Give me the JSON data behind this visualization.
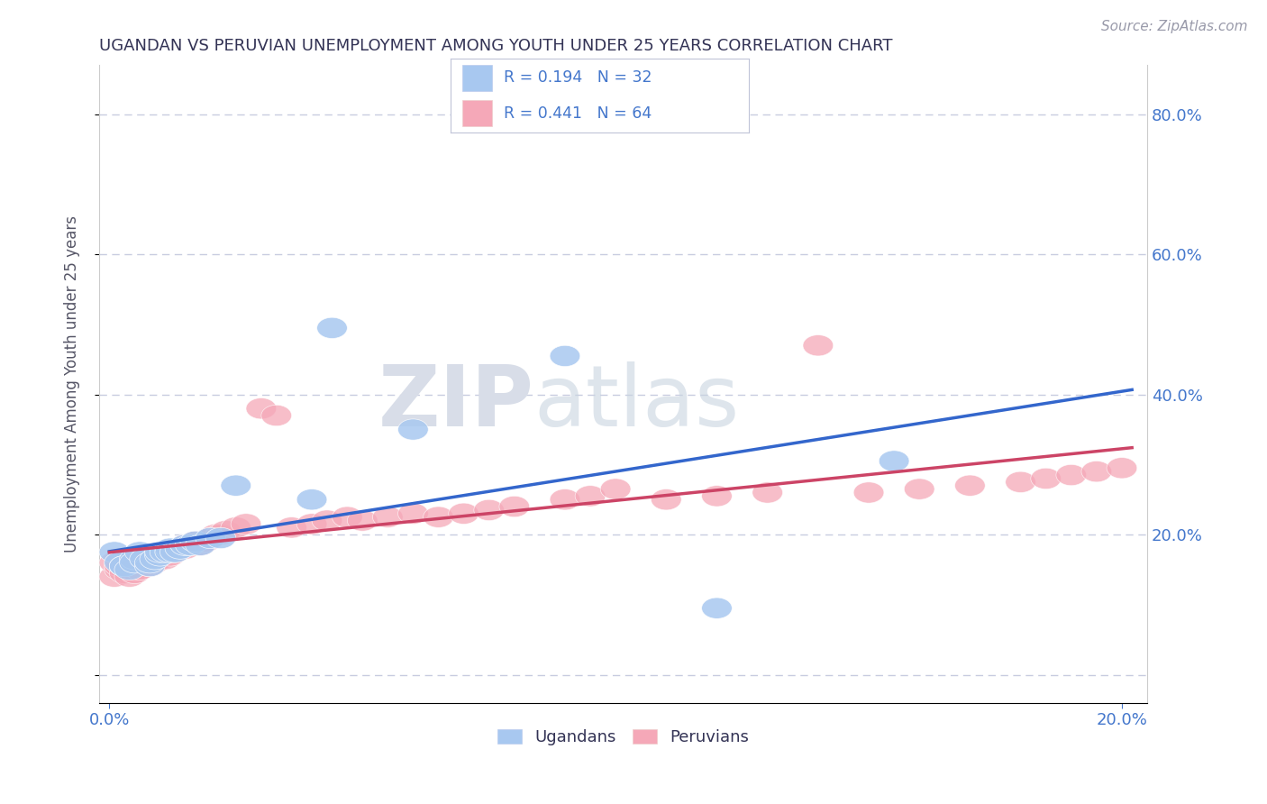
{
  "title": "UGANDAN VS PERUVIAN UNEMPLOYMENT AMONG YOUTH UNDER 25 YEARS CORRELATION CHART",
  "source": "Source: ZipAtlas.com",
  "ylabel": "Unemployment Among Youth under 25 years",
  "ugandan_R": 0.194,
  "ugandan_N": 32,
  "peruvian_R": 0.441,
  "peruvian_N": 64,
  "ugandan_color": "#a8c8f0",
  "peruvian_color": "#f5a8b8",
  "ugandan_line_color": "#3366cc",
  "peruvian_line_color": "#cc4466",
  "title_color": "#333355",
  "tick_color": "#4477cc",
  "grid_color": "#c8cce0",
  "background_color": "#ffffff",
  "legend_label_color": "#4477cc",
  "xlim": [
    -0.002,
    0.205
  ],
  "ylim": [
    -0.04,
    0.87
  ],
  "yticks": [
    0.0,
    0.2,
    0.4,
    0.6,
    0.8
  ],
  "xticks": [
    0.0,
    0.2
  ],
  "ugandan_x": [
    0.001,
    0.002,
    0.003,
    0.003,
    0.004,
    0.005,
    0.005,
    0.006,
    0.007,
    0.008,
    0.008,
    0.009,
    0.01,
    0.01,
    0.011,
    0.012,
    0.012,
    0.013,
    0.014,
    0.015,
    0.016,
    0.017,
    0.018,
    0.02,
    0.022,
    0.025,
    0.04,
    0.044,
    0.06,
    0.09,
    0.12,
    0.155
  ],
  "ugandan_y": [
    0.175,
    0.16,
    0.155,
    0.155,
    0.15,
    0.165,
    0.16,
    0.175,
    0.165,
    0.155,
    0.16,
    0.165,
    0.17,
    0.175,
    0.175,
    0.18,
    0.175,
    0.175,
    0.18,
    0.185,
    0.185,
    0.19,
    0.185,
    0.195,
    0.195,
    0.27,
    0.25,
    0.495,
    0.35,
    0.455,
    0.095,
    0.305
  ],
  "peruvian_x": [
    0.001,
    0.001,
    0.002,
    0.002,
    0.003,
    0.003,
    0.004,
    0.004,
    0.005,
    0.005,
    0.006,
    0.006,
    0.007,
    0.007,
    0.008,
    0.008,
    0.009,
    0.01,
    0.01,
    0.011,
    0.012,
    0.012,
    0.013,
    0.014,
    0.015,
    0.015,
    0.016,
    0.017,
    0.018,
    0.019,
    0.02,
    0.021,
    0.022,
    0.023,
    0.025,
    0.027,
    0.03,
    0.033,
    0.036,
    0.04,
    0.043,
    0.047,
    0.05,
    0.055,
    0.06,
    0.065,
    0.07,
    0.075,
    0.08,
    0.09,
    0.095,
    0.1,
    0.11,
    0.12,
    0.13,
    0.14,
    0.15,
    0.16,
    0.17,
    0.18,
    0.185,
    0.19,
    0.195,
    0.2
  ],
  "peruvian_y": [
    0.14,
    0.16,
    0.15,
    0.155,
    0.145,
    0.155,
    0.14,
    0.16,
    0.145,
    0.16,
    0.15,
    0.165,
    0.16,
    0.165,
    0.165,
    0.155,
    0.16,
    0.165,
    0.17,
    0.165,
    0.17,
    0.175,
    0.175,
    0.18,
    0.18,
    0.185,
    0.185,
    0.19,
    0.185,
    0.19,
    0.195,
    0.2,
    0.2,
    0.205,
    0.21,
    0.215,
    0.38,
    0.37,
    0.21,
    0.215,
    0.22,
    0.225,
    0.22,
    0.225,
    0.23,
    0.225,
    0.23,
    0.235,
    0.24,
    0.25,
    0.255,
    0.265,
    0.25,
    0.255,
    0.26,
    0.47,
    0.26,
    0.265,
    0.27,
    0.275,
    0.28,
    0.285,
    0.29,
    0.295
  ]
}
